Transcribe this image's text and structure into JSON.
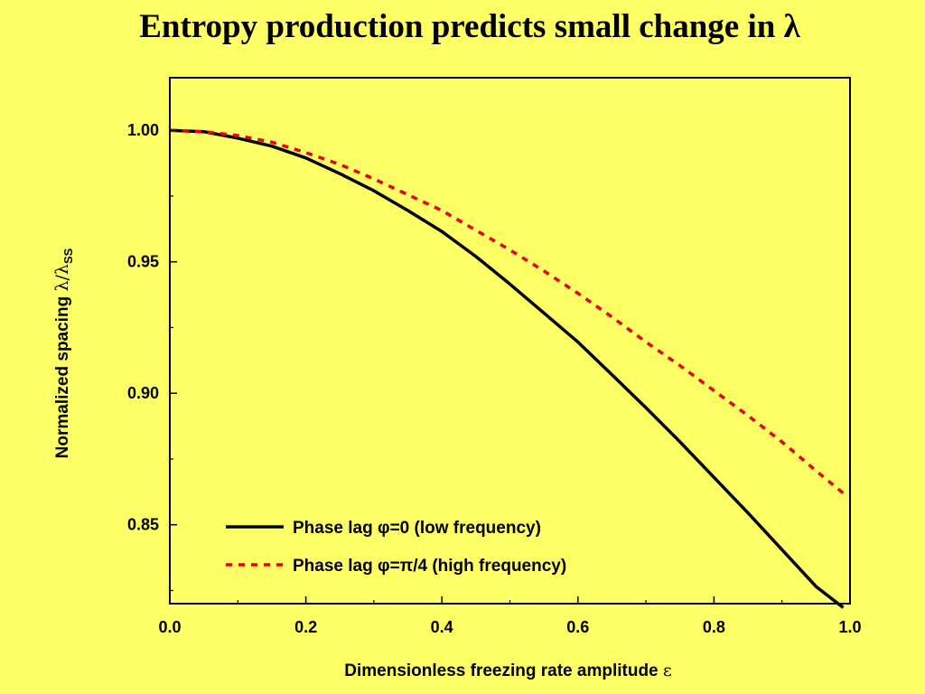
{
  "slide_title": "Entropy production predicts small change in λ",
  "colors": {
    "background": "#FFFF66",
    "series_1": "#000000",
    "series_2": "#E8000B"
  },
  "chart_data": {
    "type": "line",
    "xlabel_main": "Dimensionless freezing rate amplitude ",
    "xlabel_symbol": "ε",
    "ylabel_main": "Normalized spacing ",
    "ylabel_symbol": "λ/λ",
    "ylabel_sub": "SS",
    "xlim": [
      0.0,
      1.0
    ],
    "ylim": [
      0.82,
      1.02
    ],
    "x_ticks": [
      0.0,
      0.2,
      0.4,
      0.6,
      0.8,
      1.0
    ],
    "x_tick_labels": [
      "0.0",
      "0.2",
      "0.4",
      "0.6",
      "0.8",
      "1.0"
    ],
    "y_ticks": [
      0.85,
      0.9,
      0.95,
      1.0
    ],
    "y_tick_labels": [
      "0.85",
      "0.90",
      "0.95",
      "1.00"
    ],
    "grid": false,
    "legend_position": "bottom-left",
    "series": [
      {
        "name": "Phase lag φ=0  (low frequency)",
        "style": "solid",
        "color": "#000000",
        "x": [
          0.0,
          0.05,
          0.1,
          0.15,
          0.2,
          0.25,
          0.3,
          0.35,
          0.4,
          0.45,
          0.5,
          0.55,
          0.6,
          0.65,
          0.7,
          0.75,
          0.8,
          0.85,
          0.9,
          0.95,
          0.99
        ],
        "y": [
          1.0,
          0.9995,
          0.997,
          0.994,
          0.9895,
          0.9835,
          0.977,
          0.9695,
          0.9615,
          0.952,
          0.9415,
          0.9305,
          0.9195,
          0.907,
          0.8945,
          0.8815,
          0.868,
          0.8545,
          0.8405,
          0.8265,
          0.8185
        ]
      },
      {
        "name": "Phase lag φ=π/4  (high frequency)",
        "style": "dashed",
        "color": "#E8000B",
        "x": [
          0.0,
          0.05,
          0.1,
          0.15,
          0.2,
          0.25,
          0.3,
          0.35,
          0.4,
          0.45,
          0.5,
          0.55,
          0.6,
          0.65,
          0.7,
          0.75,
          0.8,
          0.85,
          0.9,
          0.95,
          0.99
        ],
        "y": [
          1.0,
          0.9995,
          0.998,
          0.9955,
          0.9915,
          0.987,
          0.9815,
          0.9755,
          0.9695,
          0.962,
          0.9545,
          0.9465,
          0.938,
          0.929,
          0.9195,
          0.9105,
          0.901,
          0.8915,
          0.8815,
          0.8705,
          0.862
        ]
      }
    ]
  }
}
